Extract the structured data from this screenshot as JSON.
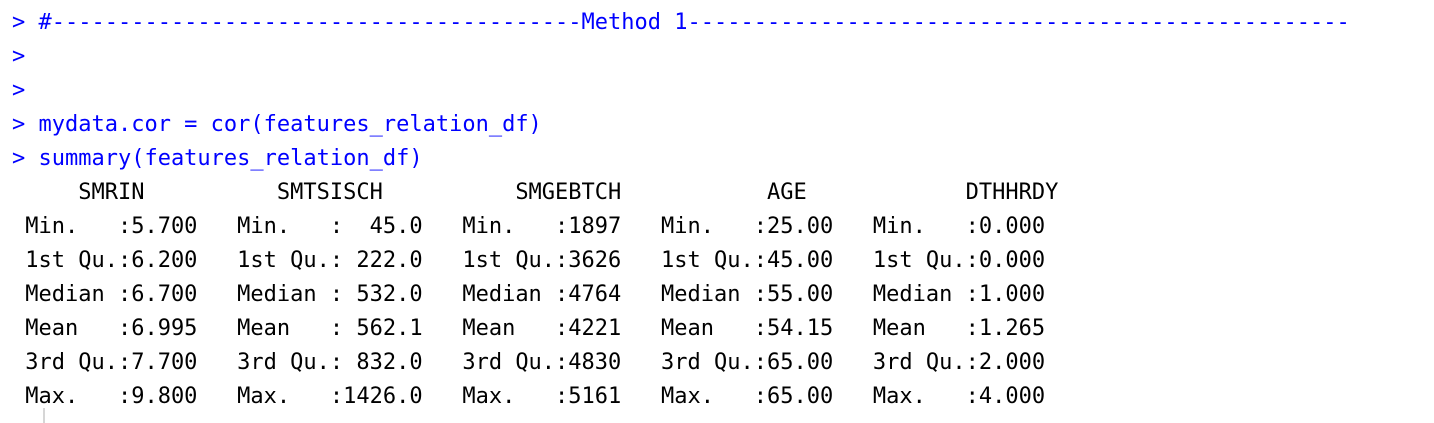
{
  "console": {
    "prompt": ">",
    "colors": {
      "command": "#0000ff",
      "output": "#000000",
      "background": "#ffffff"
    },
    "command_lines": [
      "> #----------------------------------------Method 1--------------------------------------------------",
      ">",
      ">",
      "> mydata.cor = cor(features_relation_df)",
      "> summary(features_relation_df)"
    ],
    "summary_output": {
      "header": "     SMRIN          SMTSISCH          SMGEBTCH           AGE            DTHHRDY     ",
      "rows": [
        " Min.   :5.700   Min.   :  45.0   Min.   :1897   Min.   :25.00   Min.   :0.000  ",
        " 1st Qu.:6.200   1st Qu.: 222.0   1st Qu.:3626   1st Qu.:45.00   1st Qu.:0.000  ",
        " Median :6.700   Median : 532.0   Median :4764   Median :55.00   Median :1.000  ",
        " Mean   :6.995   Mean   : 562.1   Mean   :4221   Mean   :54.15   Mean   :1.265  ",
        " 3rd Qu.:7.700   3rd Qu.: 832.0   3rd Qu.:4830   3rd Qu.:65.00   3rd Qu.:2.000  ",
        " Max.   :9.800   Max.   :1426.0   Max.   :5161   Max.   :65.00   Max.   :4.000  "
      ]
    }
  }
}
